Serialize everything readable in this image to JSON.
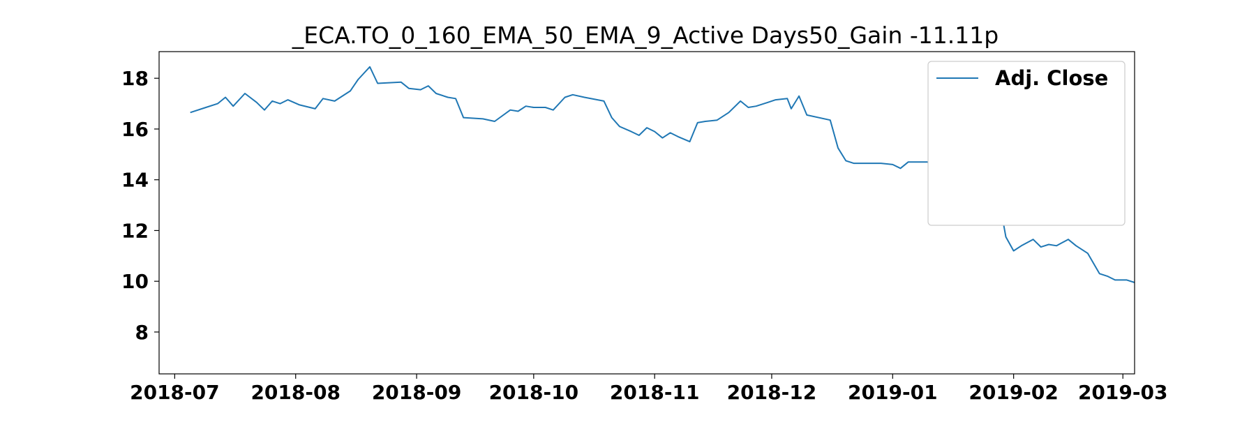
{
  "chart_data": {
    "type": "line",
    "title": "_ECA.TO_0_160_EMA_50_EMA_9_Active Days50_Gain -11.11p",
    "xlabel": "",
    "ylabel": "",
    "x_range": [
      "2018-06-27",
      "2019-03-04"
    ],
    "y_range": [
      6.35,
      19.05
    ],
    "x_ticks": [
      {
        "date": "2018-07-01",
        "label": "2018-07"
      },
      {
        "date": "2018-08-01",
        "label": "2018-08"
      },
      {
        "date": "2018-09-01",
        "label": "2018-09"
      },
      {
        "date": "2018-10-01",
        "label": "2018-10"
      },
      {
        "date": "2018-11-01",
        "label": "2018-11"
      },
      {
        "date": "2018-12-01",
        "label": "2018-12"
      },
      {
        "date": "2019-01-01",
        "label": "2019-01"
      },
      {
        "date": "2019-02-01",
        "label": "2019-02"
      },
      {
        "date": "2019-03-01",
        "label": "2019-03"
      }
    ],
    "y_ticks": [
      8,
      10,
      12,
      14,
      16,
      18
    ],
    "grid": false,
    "legend_position": "top-right",
    "series": [
      {
        "name": "Adj. Close",
        "color": "#1f77b4",
        "style": "solid",
        "points": [
          [
            "2018-07-05",
            16.65
          ],
          [
            "2018-07-09",
            16.85
          ],
          [
            "2018-07-12",
            17.0
          ],
          [
            "2018-07-14",
            17.25
          ],
          [
            "2018-07-16",
            16.9
          ],
          [
            "2018-07-19",
            17.4
          ],
          [
            "2018-07-22",
            17.05
          ],
          [
            "2018-07-24",
            16.75
          ],
          [
            "2018-07-26",
            17.1
          ],
          [
            "2018-07-28",
            17.0
          ],
          [
            "2018-07-30",
            17.15
          ],
          [
            "2018-08-02",
            16.95
          ],
          [
            "2018-08-06",
            16.8
          ],
          [
            "2018-08-08",
            17.2
          ],
          [
            "2018-08-11",
            17.1
          ],
          [
            "2018-08-15",
            17.5
          ],
          [
            "2018-08-17",
            17.95
          ],
          [
            "2018-08-20",
            18.45
          ],
          [
            "2018-08-22",
            17.8
          ],
          [
            "2018-08-28",
            17.85
          ],
          [
            "2018-08-30",
            17.6
          ],
          [
            "2018-09-02",
            17.55
          ],
          [
            "2018-09-04",
            17.7
          ],
          [
            "2018-09-06",
            17.4
          ],
          [
            "2018-09-09",
            17.25
          ],
          [
            "2018-09-11",
            17.2
          ],
          [
            "2018-09-13",
            16.45
          ],
          [
            "2018-09-18",
            16.4
          ],
          [
            "2018-09-21",
            16.3
          ],
          [
            "2018-09-25",
            16.75
          ],
          [
            "2018-09-27",
            16.7
          ],
          [
            "2018-09-29",
            16.9
          ],
          [
            "2018-10-01",
            16.85
          ],
          [
            "2018-10-04",
            16.85
          ],
          [
            "2018-10-06",
            16.75
          ],
          [
            "2018-10-09",
            17.25
          ],
          [
            "2018-10-11",
            17.35
          ],
          [
            "2018-10-14",
            17.25
          ],
          [
            "2018-10-19",
            17.1
          ],
          [
            "2018-10-21",
            16.45
          ],
          [
            "2018-10-23",
            16.1
          ],
          [
            "2018-10-26",
            15.9
          ],
          [
            "2018-10-28",
            15.75
          ],
          [
            "2018-10-30",
            16.05
          ],
          [
            "2018-11-01",
            15.9
          ],
          [
            "2018-11-03",
            15.65
          ],
          [
            "2018-11-05",
            15.85
          ],
          [
            "2018-11-07",
            15.7
          ],
          [
            "2018-11-10",
            15.5
          ],
          [
            "2018-11-12",
            16.25
          ],
          [
            "2018-11-14",
            16.3
          ],
          [
            "2018-11-17",
            16.35
          ],
          [
            "2018-11-20",
            16.65
          ],
          [
            "2018-11-23",
            17.1
          ],
          [
            "2018-11-25",
            16.85
          ],
          [
            "2018-11-27",
            16.9
          ],
          [
            "2018-11-30",
            17.05
          ],
          [
            "2018-12-02",
            17.15
          ],
          [
            "2018-12-05",
            17.2
          ],
          [
            "2018-12-06",
            16.8
          ],
          [
            "2018-12-08",
            17.3
          ],
          [
            "2018-12-10",
            16.55
          ],
          [
            "2018-12-16",
            16.35
          ],
          [
            "2018-12-18",
            15.25
          ],
          [
            "2018-12-20",
            14.75
          ],
          [
            "2018-12-22",
            14.65
          ],
          [
            "2018-12-29",
            14.65
          ],
          [
            "2019-01-01",
            14.6
          ],
          [
            "2019-01-03",
            14.45
          ],
          [
            "2019-01-05",
            14.7
          ],
          [
            "2019-01-10",
            14.7
          ],
          [
            "2019-01-13",
            13.95
          ],
          [
            "2019-01-15",
            13.3
          ],
          [
            "2019-01-17",
            13.85
          ],
          [
            "2019-01-19",
            13.5
          ],
          [
            "2019-01-21",
            13.35
          ],
          [
            "2019-01-23",
            12.95
          ],
          [
            "2019-01-26",
            13.4
          ],
          [
            "2019-01-28",
            13.45
          ],
          [
            "2019-01-30",
            11.75
          ],
          [
            "2019-02-01",
            11.2
          ],
          [
            "2019-02-03",
            11.4
          ],
          [
            "2019-02-06",
            11.65
          ],
          [
            "2019-02-08",
            11.35
          ],
          [
            "2019-02-10",
            11.45
          ],
          [
            "2019-02-12",
            11.4
          ],
          [
            "2019-02-15",
            11.65
          ],
          [
            "2019-02-17",
            11.4
          ],
          [
            "2019-02-20",
            11.1
          ],
          [
            "2019-02-23",
            10.3
          ],
          [
            "2019-02-25",
            10.2
          ],
          [
            "2019-02-27",
            10.05
          ],
          [
            "2019-03-02",
            10.05
          ],
          [
            "2019-03-04",
            9.95
          ]
        ]
      }
    ]
  }
}
